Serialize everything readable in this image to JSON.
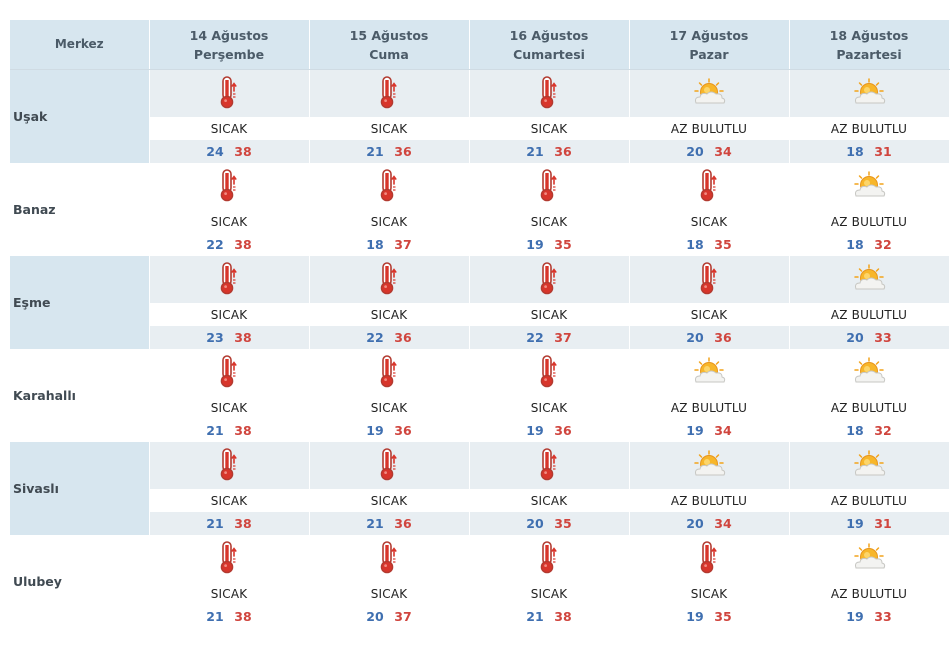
{
  "header": {
    "location_label": "Merkez",
    "days": [
      {
        "date": "14 Ağustos",
        "weekday": "Perşembe"
      },
      {
        "date": "15 Ağustos",
        "weekday": "Cuma"
      },
      {
        "date": "16 Ağustos",
        "weekday": "Cumartesi"
      },
      {
        "date": "17 Ağustos",
        "weekday": "Pazar"
      },
      {
        "date": "18 Ağustos",
        "weekday": "Pazartesi"
      }
    ]
  },
  "rows": [
    {
      "name": "Uşak",
      "forecasts": [
        {
          "icon": "thermometer-hot-icon",
          "condition": "SICAK",
          "low": "24",
          "high": "38"
        },
        {
          "icon": "thermometer-hot-icon",
          "condition": "SICAK",
          "low": "21",
          "high": "36"
        },
        {
          "icon": "thermometer-hot-icon",
          "condition": "SICAK",
          "low": "21",
          "high": "36"
        },
        {
          "icon": "partly-cloudy-icon",
          "condition": "AZ BULUTLU",
          "low": "20",
          "high": "34"
        },
        {
          "icon": "partly-cloudy-icon",
          "condition": "AZ BULUTLU",
          "low": "18",
          "high": "31"
        }
      ]
    },
    {
      "name": "Banaz",
      "forecasts": [
        {
          "icon": "thermometer-hot-icon",
          "condition": "SICAK",
          "low": "22",
          "high": "38"
        },
        {
          "icon": "thermometer-hot-icon",
          "condition": "SICAK",
          "low": "18",
          "high": "37"
        },
        {
          "icon": "thermometer-hot-icon",
          "condition": "SICAK",
          "low": "19",
          "high": "35"
        },
        {
          "icon": "thermometer-hot-icon",
          "condition": "SICAK",
          "low": "18",
          "high": "35"
        },
        {
          "icon": "partly-cloudy-icon",
          "condition": "AZ BULUTLU",
          "low": "18",
          "high": "32"
        }
      ]
    },
    {
      "name": "Eşme",
      "forecasts": [
        {
          "icon": "thermometer-hot-icon",
          "condition": "SICAK",
          "low": "23",
          "high": "38"
        },
        {
          "icon": "thermometer-hot-icon",
          "condition": "SICAK",
          "low": "22",
          "high": "36"
        },
        {
          "icon": "thermometer-hot-icon",
          "condition": "SICAK",
          "low": "22",
          "high": "37"
        },
        {
          "icon": "thermometer-hot-icon",
          "condition": "SICAK",
          "low": "20",
          "high": "36"
        },
        {
          "icon": "partly-cloudy-icon",
          "condition": "AZ BULUTLU",
          "low": "20",
          "high": "33"
        }
      ]
    },
    {
      "name": "Karahallı",
      "forecasts": [
        {
          "icon": "thermometer-hot-icon",
          "condition": "SICAK",
          "low": "21",
          "high": "38"
        },
        {
          "icon": "thermometer-hot-icon",
          "condition": "SICAK",
          "low": "19",
          "high": "36"
        },
        {
          "icon": "thermometer-hot-icon",
          "condition": "SICAK",
          "low": "19",
          "high": "36"
        },
        {
          "icon": "partly-cloudy-icon",
          "condition": "AZ BULUTLU",
          "low": "19",
          "high": "34"
        },
        {
          "icon": "partly-cloudy-icon",
          "condition": "AZ BULUTLU",
          "low": "18",
          "high": "32"
        }
      ]
    },
    {
      "name": "Sivaslı",
      "forecasts": [
        {
          "icon": "thermometer-hot-icon",
          "condition": "SICAK",
          "low": "21",
          "high": "38"
        },
        {
          "icon": "thermometer-hot-icon",
          "condition": "SICAK",
          "low": "21",
          "high": "36"
        },
        {
          "icon": "thermometer-hot-icon",
          "condition": "SICAK",
          "low": "20",
          "high": "35"
        },
        {
          "icon": "partly-cloudy-icon",
          "condition": "AZ BULUTLU",
          "low": "20",
          "high": "34"
        },
        {
          "icon": "partly-cloudy-icon",
          "condition": "AZ BULUTLU",
          "low": "19",
          "high": "31"
        }
      ]
    },
    {
      "name": "Ulubey",
      "forecasts": [
        {
          "icon": "thermometer-hot-icon",
          "condition": "SICAK",
          "low": "21",
          "high": "38"
        },
        {
          "icon": "thermometer-hot-icon",
          "condition": "SICAK",
          "low": "20",
          "high": "37"
        },
        {
          "icon": "thermometer-hot-icon",
          "condition": "SICAK",
          "low": "21",
          "high": "38"
        },
        {
          "icon": "thermometer-hot-icon",
          "condition": "SICAK",
          "low": "19",
          "high": "35"
        },
        {
          "icon": "partly-cloudy-icon",
          "condition": "AZ BULUTLU",
          "low": "19",
          "high": "33"
        }
      ]
    }
  ],
  "colors": {
    "low_temp": "#3f6fb0",
    "high_temp": "#d0453e",
    "header_bg": "#d7e6ef",
    "shaded_row_bg": "#e8eef2"
  }
}
